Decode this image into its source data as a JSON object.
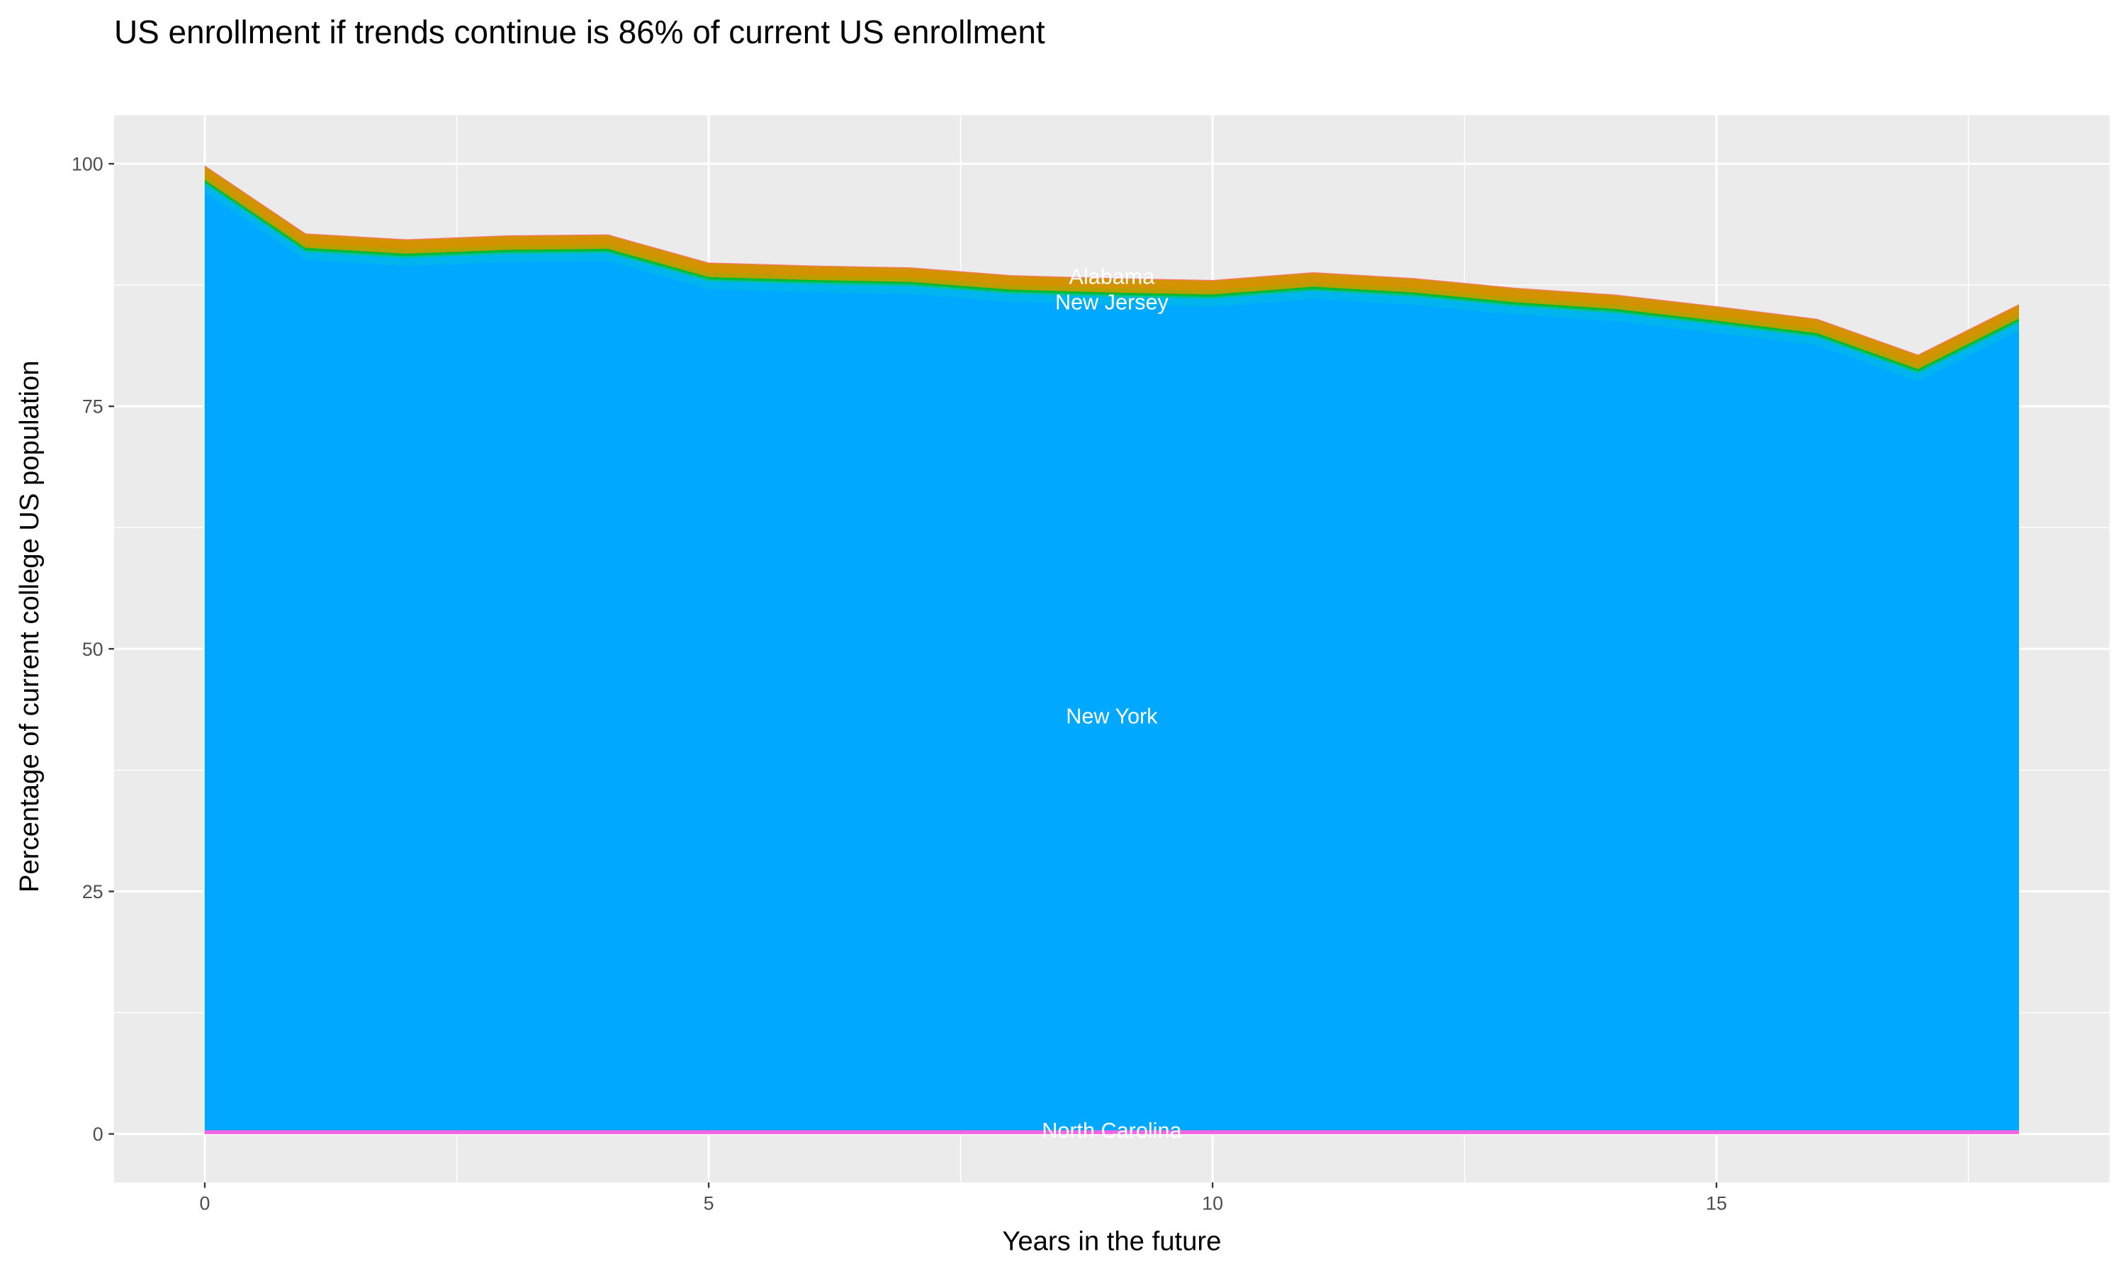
{
  "chart_data": {
    "type": "area",
    "stacked": true,
    "title": "US enrollment if trends continue is 86% of current US enrollment",
    "xlabel": "Years in the future",
    "ylabel": "Percentage of current college US population",
    "xlim": [
      -0.9,
      18.9
    ],
    "ylim": [
      -5,
      105
    ],
    "x_ticks": [
      0,
      5,
      10,
      15
    ],
    "y_ticks": [
      0,
      25,
      50,
      75,
      100
    ],
    "grid": true,
    "legend": "none",
    "x": [
      0,
      1,
      2,
      3,
      4,
      5,
      6,
      7,
      8,
      9,
      10,
      11,
      12,
      13,
      14,
      15,
      16,
      17,
      18
    ],
    "series": [
      {
        "name": "North Carolina",
        "color": "#F564E3",
        "values": [
          0.4,
          0.4,
          0.4,
          0.4,
          0.4,
          0.4,
          0.4,
          0.4,
          0.4,
          0.4,
          0.4,
          0.4,
          0.4,
          0.4,
          0.4,
          0.4,
          0.4,
          0.4,
          0.4
        ]
      },
      {
        "name": "New York",
        "color": "#00A9FF",
        "values": [
          96.7,
          89.7,
          89.1,
          89.5,
          89.6,
          86.7,
          86.4,
          86.2,
          85.4,
          85.1,
          84.9,
          85.7,
          85.1,
          84.1,
          83.4,
          82.2,
          80.9,
          77.2,
          82.4
        ]
      },
      {
        "name": "New Jersey",
        "color": "#00B4EF",
        "values": [
          0.8,
          0.8,
          0.8,
          0.8,
          0.8,
          0.8,
          0.8,
          0.8,
          0.8,
          0.8,
          0.8,
          0.8,
          0.8,
          0.8,
          0.8,
          0.8,
          0.8,
          0.8,
          0.8
        ]
      },
      {
        "color": "#00C19F",
        "values": [
          0.2,
          0.2,
          0.2,
          0.2,
          0.2,
          0.2,
          0.2,
          0.2,
          0.2,
          0.2,
          0.2,
          0.2,
          0.2,
          0.2,
          0.2,
          0.2,
          0.2,
          0.2,
          0.2
        ]
      },
      {
        "color": "#00BA38",
        "values": [
          0.25,
          0.25,
          0.25,
          0.25,
          0.25,
          0.25,
          0.25,
          0.25,
          0.25,
          0.25,
          0.25,
          0.25,
          0.25,
          0.25,
          0.25,
          0.25,
          0.25,
          0.25,
          0.25
        ]
      },
      {
        "color": "#B79F00",
        "values": [
          0.45,
          0.45,
          0.45,
          0.45,
          0.45,
          0.45,
          0.45,
          0.45,
          0.45,
          0.45,
          0.45,
          0.45,
          0.45,
          0.45,
          0.45,
          0.45,
          0.45,
          0.45,
          0.45
        ]
      },
      {
        "name": "Alabama",
        "color": "#D39200",
        "values": [
          0.95,
          0.95,
          0.95,
          0.95,
          0.95,
          0.95,
          0.95,
          0.95,
          0.95,
          0.95,
          0.95,
          0.95,
          0.95,
          0.95,
          0.95,
          0.95,
          0.95,
          0.95,
          0.95
        ]
      },
      {
        "color": "#F8766D",
        "values": [
          0.05,
          0.05,
          0.05,
          0.05,
          0.05,
          0.05,
          0.05,
          0.05,
          0.05,
          0.05,
          0.05,
          0.05,
          0.05,
          0.05,
          0.05,
          0.05,
          0.05,
          0.05,
          0.05
        ]
      }
    ],
    "annotations": [
      {
        "text": "Alabama",
        "x": 9,
        "y": 87.8
      },
      {
        "text": "New Jersey",
        "x": 9,
        "y": 86.2
      },
      {
        "text": "New York",
        "x": 9,
        "y": 43
      },
      {
        "text": "North Carolina",
        "x": 9,
        "y": 0.3
      }
    ],
    "panel_background": "#EBEBEB"
  }
}
